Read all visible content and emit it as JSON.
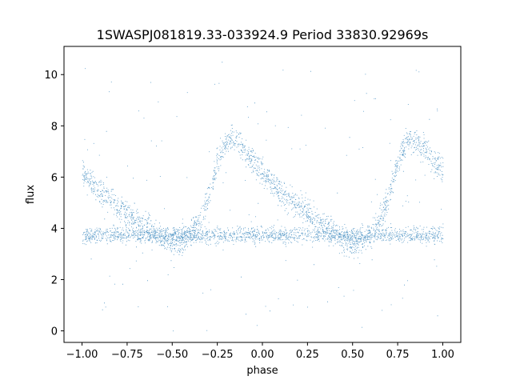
{
  "chart_data": {
    "type": "scatter",
    "title": "1SWASPJ081819.33-033924.9 Period 33830.92969s",
    "xlabel": "phase",
    "ylabel": "flux",
    "xlim": [
      -1.1,
      1.1
    ],
    "ylim": [
      -0.45,
      11.1
    ],
    "xticks": [
      -1.0,
      -0.75,
      -0.5,
      -0.25,
      0.0,
      0.25,
      0.5,
      0.75,
      1.0
    ],
    "xtick_labels": [
      "−1.00",
      "−0.75",
      "−0.50",
      "−0.25",
      "0.00",
      "0.25",
      "0.50",
      "0.75",
      "1.00"
    ],
    "yticks": [
      0,
      2,
      4,
      6,
      8,
      10
    ],
    "ytick_labels": [
      "0",
      "2",
      "4",
      "6",
      "8",
      "10"
    ],
    "grid": false,
    "legend": "none",
    "marker_color": "#1f77b4",
    "phase_range": [
      -1.0,
      1.0
    ],
    "series": [
      {
        "role": "primary-band",
        "x": [
          0.0,
          0.05,
          0.1,
          0.15,
          0.2,
          0.25,
          0.3,
          0.35,
          0.4,
          0.45,
          0.5,
          0.55,
          0.6,
          0.65,
          0.7,
          0.75,
          0.8,
          0.85,
          0.9,
          0.95,
          1.0
        ],
        "y": [
          6.2,
          5.8,
          5.45,
          5.15,
          4.85,
          4.6,
          4.35,
          4.1,
          3.8,
          3.55,
          3.35,
          3.5,
          3.8,
          4.3,
          5.3,
          6.6,
          7.4,
          7.5,
          7.1,
          6.6,
          6.2
        ],
        "y_spread": 0.35
      },
      {
        "role": "secondary-band",
        "x": [
          0.0,
          0.25,
          0.5,
          0.75,
          1.0
        ],
        "y": [
          3.75,
          3.75,
          3.75,
          3.75,
          3.75
        ],
        "y_spread": 0.22
      }
    ],
    "outliers": {
      "y_range": [
        0.0,
        10.6
      ],
      "fraction": 0.04
    }
  }
}
